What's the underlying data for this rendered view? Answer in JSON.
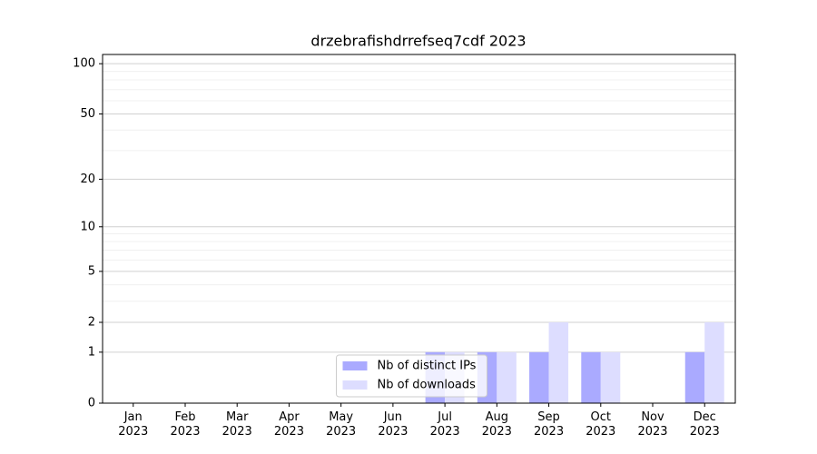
{
  "chart_data": {
    "type": "bar",
    "title": "drzebrafishdrrefseq7cdf 2023",
    "categories": [
      "Jan\n2023",
      "Feb\n2023",
      "Mar\n2023",
      "Apr\n2023",
      "May\n2023",
      "Jun\n2023",
      "Jul\n2023",
      "Aug\n2023",
      "Sep\n2023",
      "Oct\n2023",
      "Nov\n2023",
      "Dec\n2023"
    ],
    "series": [
      {
        "name": "Nb of distinct IPs",
        "color": "#aaaaff",
        "values": [
          0,
          0,
          0,
          0,
          0,
          0,
          1,
          1,
          1,
          1,
          0,
          1
        ]
      },
      {
        "name": "Nb of downloads",
        "color": "#ddddff",
        "values": [
          0,
          0,
          0,
          0,
          0,
          0,
          1,
          1,
          2,
          1,
          0,
          2
        ]
      }
    ],
    "yscale": "log1p",
    "ylim": [
      0,
      113.5
    ],
    "yticks": [
      0,
      1,
      2,
      5,
      10,
      20,
      50,
      100
    ],
    "minor_yticks": [
      3,
      4,
      6,
      7,
      8,
      9,
      30,
      40,
      60,
      70,
      80,
      90
    ],
    "grid": true,
    "legend": "lower center"
  }
}
